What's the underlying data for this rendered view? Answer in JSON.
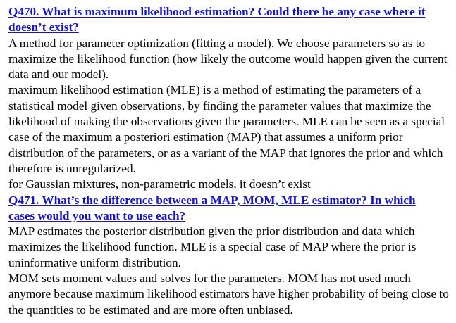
{
  "sections": [
    {
      "question": "Q470. What is maximum likelihood estimation? Could there be any case where it doesn’t exist?",
      "paragraphs": [
        "A method for parameter optimization (fitting a model). We choose parameters so as to maximize the likelihood function (how likely the outcome would happen given the current data and our model).",
        "maximum likelihood estimation (MLE) is a method of estimating the parameters of a statistical model given observations, by finding the parameter values that maximize the likelihood of making the observations given the parameters. MLE can be seen as a special case of the maximum a posteriori estimation (MAP) that assumes a uniform prior distribution of the parameters, or as a variant of the MAP that ignores the prior and which therefore is unregularized.",
        "for Gaussian mixtures, non-parametric models, it doesn’t exist"
      ]
    },
    {
      "question": "Q471. What’s the difference between a MAP, MOM, MLE estimator? In which cases would you want to use each?",
      "paragraphs": [
        "MAP estimates the posterior distribution given the prior distribution and data which maximizes the likelihood function. MLE is a special case of MAP where the prior is uninformative uniform distribution.",
        "MOM sets moment values and solves for the parameters. MOM has not used much anymore because maximum likelihood estimators have higher probability of being close to the quantities to be estimated and are more often unbiased."
      ]
    }
  ],
  "colors": {
    "question_link": "#1616c8",
    "body_text": "#000000"
  }
}
